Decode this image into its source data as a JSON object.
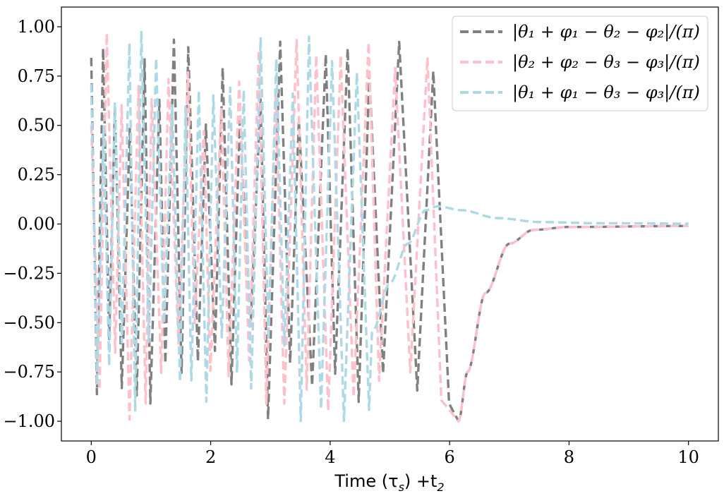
{
  "chart_data": {
    "type": "line",
    "title": "",
    "xlabel": "Time (τs) +t2",
    "xlabel_parts": {
      "base": "Time (τ",
      "sub1": "s",
      "mid": ") +t",
      "sub2": "2"
    },
    "ylabel": "",
    "xlim": [
      -0.5,
      10.5
    ],
    "ylim": [
      -1.1,
      1.1
    ],
    "grid": false,
    "legend_position": "top-right",
    "x_ticks": [
      0,
      2,
      4,
      6,
      8,
      10
    ],
    "x_tick_labels": [
      "0",
      "2",
      "4",
      "6",
      "8",
      "10"
    ],
    "y_ticks": [
      1.0,
      0.75,
      0.5,
      0.25,
      0.0,
      -0.25,
      -0.5,
      -0.75,
      -1.0
    ],
    "y_tick_labels": [
      "1.00",
      "0.75",
      "0.50",
      "0.25",
      "0.00",
      "−0.25",
      "−0.50",
      "−0.75",
      "−1.00"
    ],
    "series": [
      {
        "name": "|θ1+φ1−θ2−φ2|/(π)",
        "legend_label": "|θ₁ + φ₁ − θ₂ − φ₂|/(π)",
        "color": "#808080",
        "style": "dashed",
        "osc_end": 6.15,
        "osc_freq_start": 4.5,
        "osc_freq_end": 1.5,
        "settle": {
          "x": [
            6.15,
            6.3,
            6.6,
            7.0,
            7.4,
            8.0,
            10.0
          ],
          "y": [
            -1.0,
            -0.75,
            -0.35,
            -0.1,
            -0.03,
            -0.015,
            -0.01
          ]
        }
      },
      {
        "name": "|θ2+φ2−θ3−φ3|/(π)",
        "legend_label": "|θ₂ + φ₂ − θ₃ − φ₃|/(π)",
        "color": "#ffc0cb",
        "style": "dashed",
        "osc_end": 6.15,
        "osc_freq_start": 4.2,
        "osc_freq_end": 1.7,
        "settle": {
          "x": [
            6.15,
            6.3,
            6.6,
            7.0,
            7.4,
            8.0,
            10.0
          ],
          "y": [
            -1.0,
            -0.75,
            -0.35,
            -0.1,
            -0.03,
            -0.015,
            -0.01
          ]
        }
      },
      {
        "name": "|θ1+φ1−θ3−φ3|/(π)",
        "legend_label": "|θ₁ + φ₁ − θ₃ − φ₃|/(π)",
        "color": "#add8e6",
        "style": "dashed",
        "osc_end": 4.7,
        "osc_freq_start": 5.0,
        "osc_freq_end": 2.5,
        "settle": {
          "x": [
            4.7,
            5.0,
            5.3,
            5.6,
            5.8,
            6.2,
            6.8,
            7.5,
            8.5,
            10.0
          ],
          "y": [
            -0.55,
            -0.3,
            -0.1,
            0.07,
            0.09,
            0.07,
            0.03,
            0.01,
            0.004,
            0.002
          ]
        }
      }
    ],
    "annotations": [
      "Dense oscillations spanning [-1.00, 1.00] from t=0 to about t=6.2 for the grey and pink series; light-blue oscillations decay to a small positive bump (~0.09 near t≈5.7) and settle near 0.00",
      "Grey and pink series settle slightly below 0.00 (about -0.01) after t≈7.5"
    ]
  }
}
